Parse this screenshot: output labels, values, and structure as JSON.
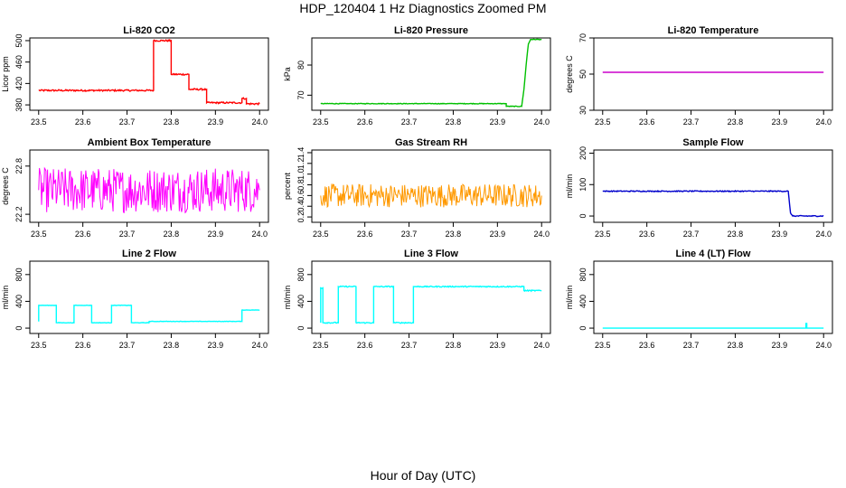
{
  "figure": {
    "title": "HDP_120404  1 Hz Diagnostics Zoomed PM",
    "xlabel": "Hour of Day (UTC)"
  },
  "chart_data": [
    {
      "type": "line",
      "title": "Li-820 CO2",
      "ylabel": "Licor ppm",
      "color": "#ff0000",
      "xlim": [
        23.48,
        24.02
      ],
      "ylim": [
        370,
        505
      ],
      "xticks": [
        "23.5",
        "23.6",
        "23.7",
        "23.8",
        "23.9",
        "24.0"
      ],
      "yticks": [
        "380",
        "420",
        "460",
        "500"
      ],
      "series": [
        {
          "x": [
            23.5,
            23.76,
            23.76,
            23.78,
            23.78,
            23.8,
            23.8,
            23.84,
            23.84,
            23.88,
            23.88,
            23.96,
            23.96,
            23.97,
            23.97,
            24.0
          ],
          "y": [
            407,
            407,
            500,
            500,
            500,
            500,
            437,
            437,
            409,
            409,
            384,
            384,
            392,
            392,
            382,
            382
          ]
        }
      ],
      "noise": 1.5
    },
    {
      "type": "line",
      "title": "Li-820 Pressure",
      "ylabel": "kPa",
      "color": "#00c000",
      "xlim": [
        23.48,
        24.02
      ],
      "ylim": [
        65,
        89
      ],
      "xticks": [
        "23.5",
        "23.6",
        "23.7",
        "23.8",
        "23.9",
        "24.0"
      ],
      "yticks": [
        "70",
        "80"
      ],
      "series": [
        {
          "x": [
            23.5,
            23.92,
            23.92,
            23.955,
            23.96,
            23.965,
            23.97,
            23.975,
            24.0
          ],
          "y": [
            67.2,
            67.2,
            66.3,
            66.3,
            72,
            80,
            87,
            88.5,
            88.5
          ]
        }
      ],
      "noise": 0.1
    },
    {
      "type": "line",
      "title": "Li-820 Temperature",
      "ylabel": "degrees C",
      "color": "#cc00cc",
      "xlim": [
        23.48,
        24.02
      ],
      "ylim": [
        30,
        70
      ],
      "xticks": [
        "23.5",
        "23.6",
        "23.7",
        "23.8",
        "23.9",
        "24.0"
      ],
      "yticks": [
        "30",
        "50",
        "70"
      ],
      "series": [
        {
          "x": [
            23.5,
            24.0
          ],
          "y": [
            51,
            51
          ]
        }
      ],
      "noise": 0
    },
    {
      "type": "line",
      "title": "Ambient Box Temperature",
      "ylabel": "degrees C",
      "color": "#ff00ff",
      "xlim": [
        23.48,
        24.02
      ],
      "ylim": [
        22.1,
        23.0
      ],
      "xticks": [
        "23.5",
        "23.6",
        "23.7",
        "23.8",
        "23.9",
        "24.0"
      ],
      "yticks": [
        "22.2",
        "22.8"
      ],
      "series": [
        {
          "x": [
            23.5,
            24.0
          ],
          "y": [
            22.5,
            22.5
          ]
        }
      ],
      "noise": 0.28
    },
    {
      "type": "line",
      "title": "Gas Stream RH",
      "ylabel": "percent",
      "color": "#ff9900",
      "xlim": [
        23.48,
        24.02
      ],
      "ylim": [
        0.1,
        1.45
      ],
      "xticks": [
        "23.5",
        "23.6",
        "23.7",
        "23.8",
        "23.9",
        "24.0"
      ],
      "yticks": [
        "0.2",
        "0.4",
        "0.6",
        "0.8",
        "1.0",
        "1.2",
        "1.4"
      ],
      "series": [
        {
          "x": [
            23.5,
            24.0
          ],
          "y": [
            0.6,
            0.6
          ]
        }
      ],
      "noise": 0.22
    },
    {
      "type": "line",
      "title": "Sample Flow",
      "ylabel": "ml/min",
      "color": "#0000cc",
      "xlim": [
        23.48,
        24.02
      ],
      "ylim": [
        -20,
        210
      ],
      "xticks": [
        "23.5",
        "23.6",
        "23.7",
        "23.8",
        "23.9",
        "24.0"
      ],
      "yticks": [
        "0",
        "100",
        "200"
      ],
      "series": [
        {
          "x": [
            23.5,
            23.92,
            23.925,
            23.93,
            24.0
          ],
          "y": [
            79,
            79,
            10,
            0,
            0
          ]
        }
      ],
      "noise": 1.5
    },
    {
      "type": "line",
      "title": "Line 2 Flow",
      "ylabel": "ml/min",
      "color": "#00ffff",
      "xlim": [
        23.48,
        24.02
      ],
      "ylim": [
        -80,
        1000
      ],
      "xticks": [
        "23.5",
        "23.6",
        "23.7",
        "23.8",
        "23.9",
        "24.0"
      ],
      "yticks": [
        "0",
        "400",
        "800"
      ],
      "series": [
        {
          "x": [
            23.5,
            23.5,
            23.54,
            23.54,
            23.58,
            23.58,
            23.62,
            23.62,
            23.665,
            23.665,
            23.71,
            23.71,
            23.75,
            23.75,
            23.96,
            23.96,
            24.0
          ],
          "y": [
            100,
            340,
            340,
            80,
            80,
            340,
            340,
            80,
            80,
            340,
            340,
            80,
            80,
            100,
            100,
            270,
            270
          ]
        }
      ],
      "noise": 3
    },
    {
      "type": "line",
      "title": "Line 3 Flow",
      "ylabel": "ml/min",
      "color": "#00ffff",
      "xlim": [
        23.48,
        24.02
      ],
      "ylim": [
        -80,
        1000
      ],
      "xticks": [
        "23.5",
        "23.6",
        "23.7",
        "23.8",
        "23.9",
        "24.0"
      ],
      "yticks": [
        "0",
        "400",
        "800"
      ],
      "series": [
        {
          "x": [
            23.5,
            23.5,
            23.505,
            23.505,
            23.54,
            23.54,
            23.58,
            23.58,
            23.62,
            23.62,
            23.665,
            23.665,
            23.71,
            23.71,
            23.96,
            23.96,
            24.0
          ],
          "y": [
            80,
            600,
            600,
            80,
            80,
            620,
            620,
            80,
            80,
            620,
            620,
            80,
            80,
            620,
            620,
            560,
            560
          ]
        }
      ],
      "noise": 8
    },
    {
      "type": "line",
      "title": "Line 4 (LT) Flow",
      "ylabel": "ml/min",
      "color": "#00ffff",
      "xlim": [
        23.48,
        24.02
      ],
      "ylim": [
        -80,
        1000
      ],
      "xticks": [
        "23.5",
        "23.6",
        "23.7",
        "23.8",
        "23.9",
        "24.0"
      ],
      "yticks": [
        "0",
        "400",
        "800"
      ],
      "series": [
        {
          "x": [
            23.5,
            23.96,
            23.96,
            23.962,
            23.962,
            24.0
          ],
          "y": [
            0,
            0,
            70,
            70,
            0,
            0
          ]
        }
      ],
      "noise": 0
    }
  ]
}
